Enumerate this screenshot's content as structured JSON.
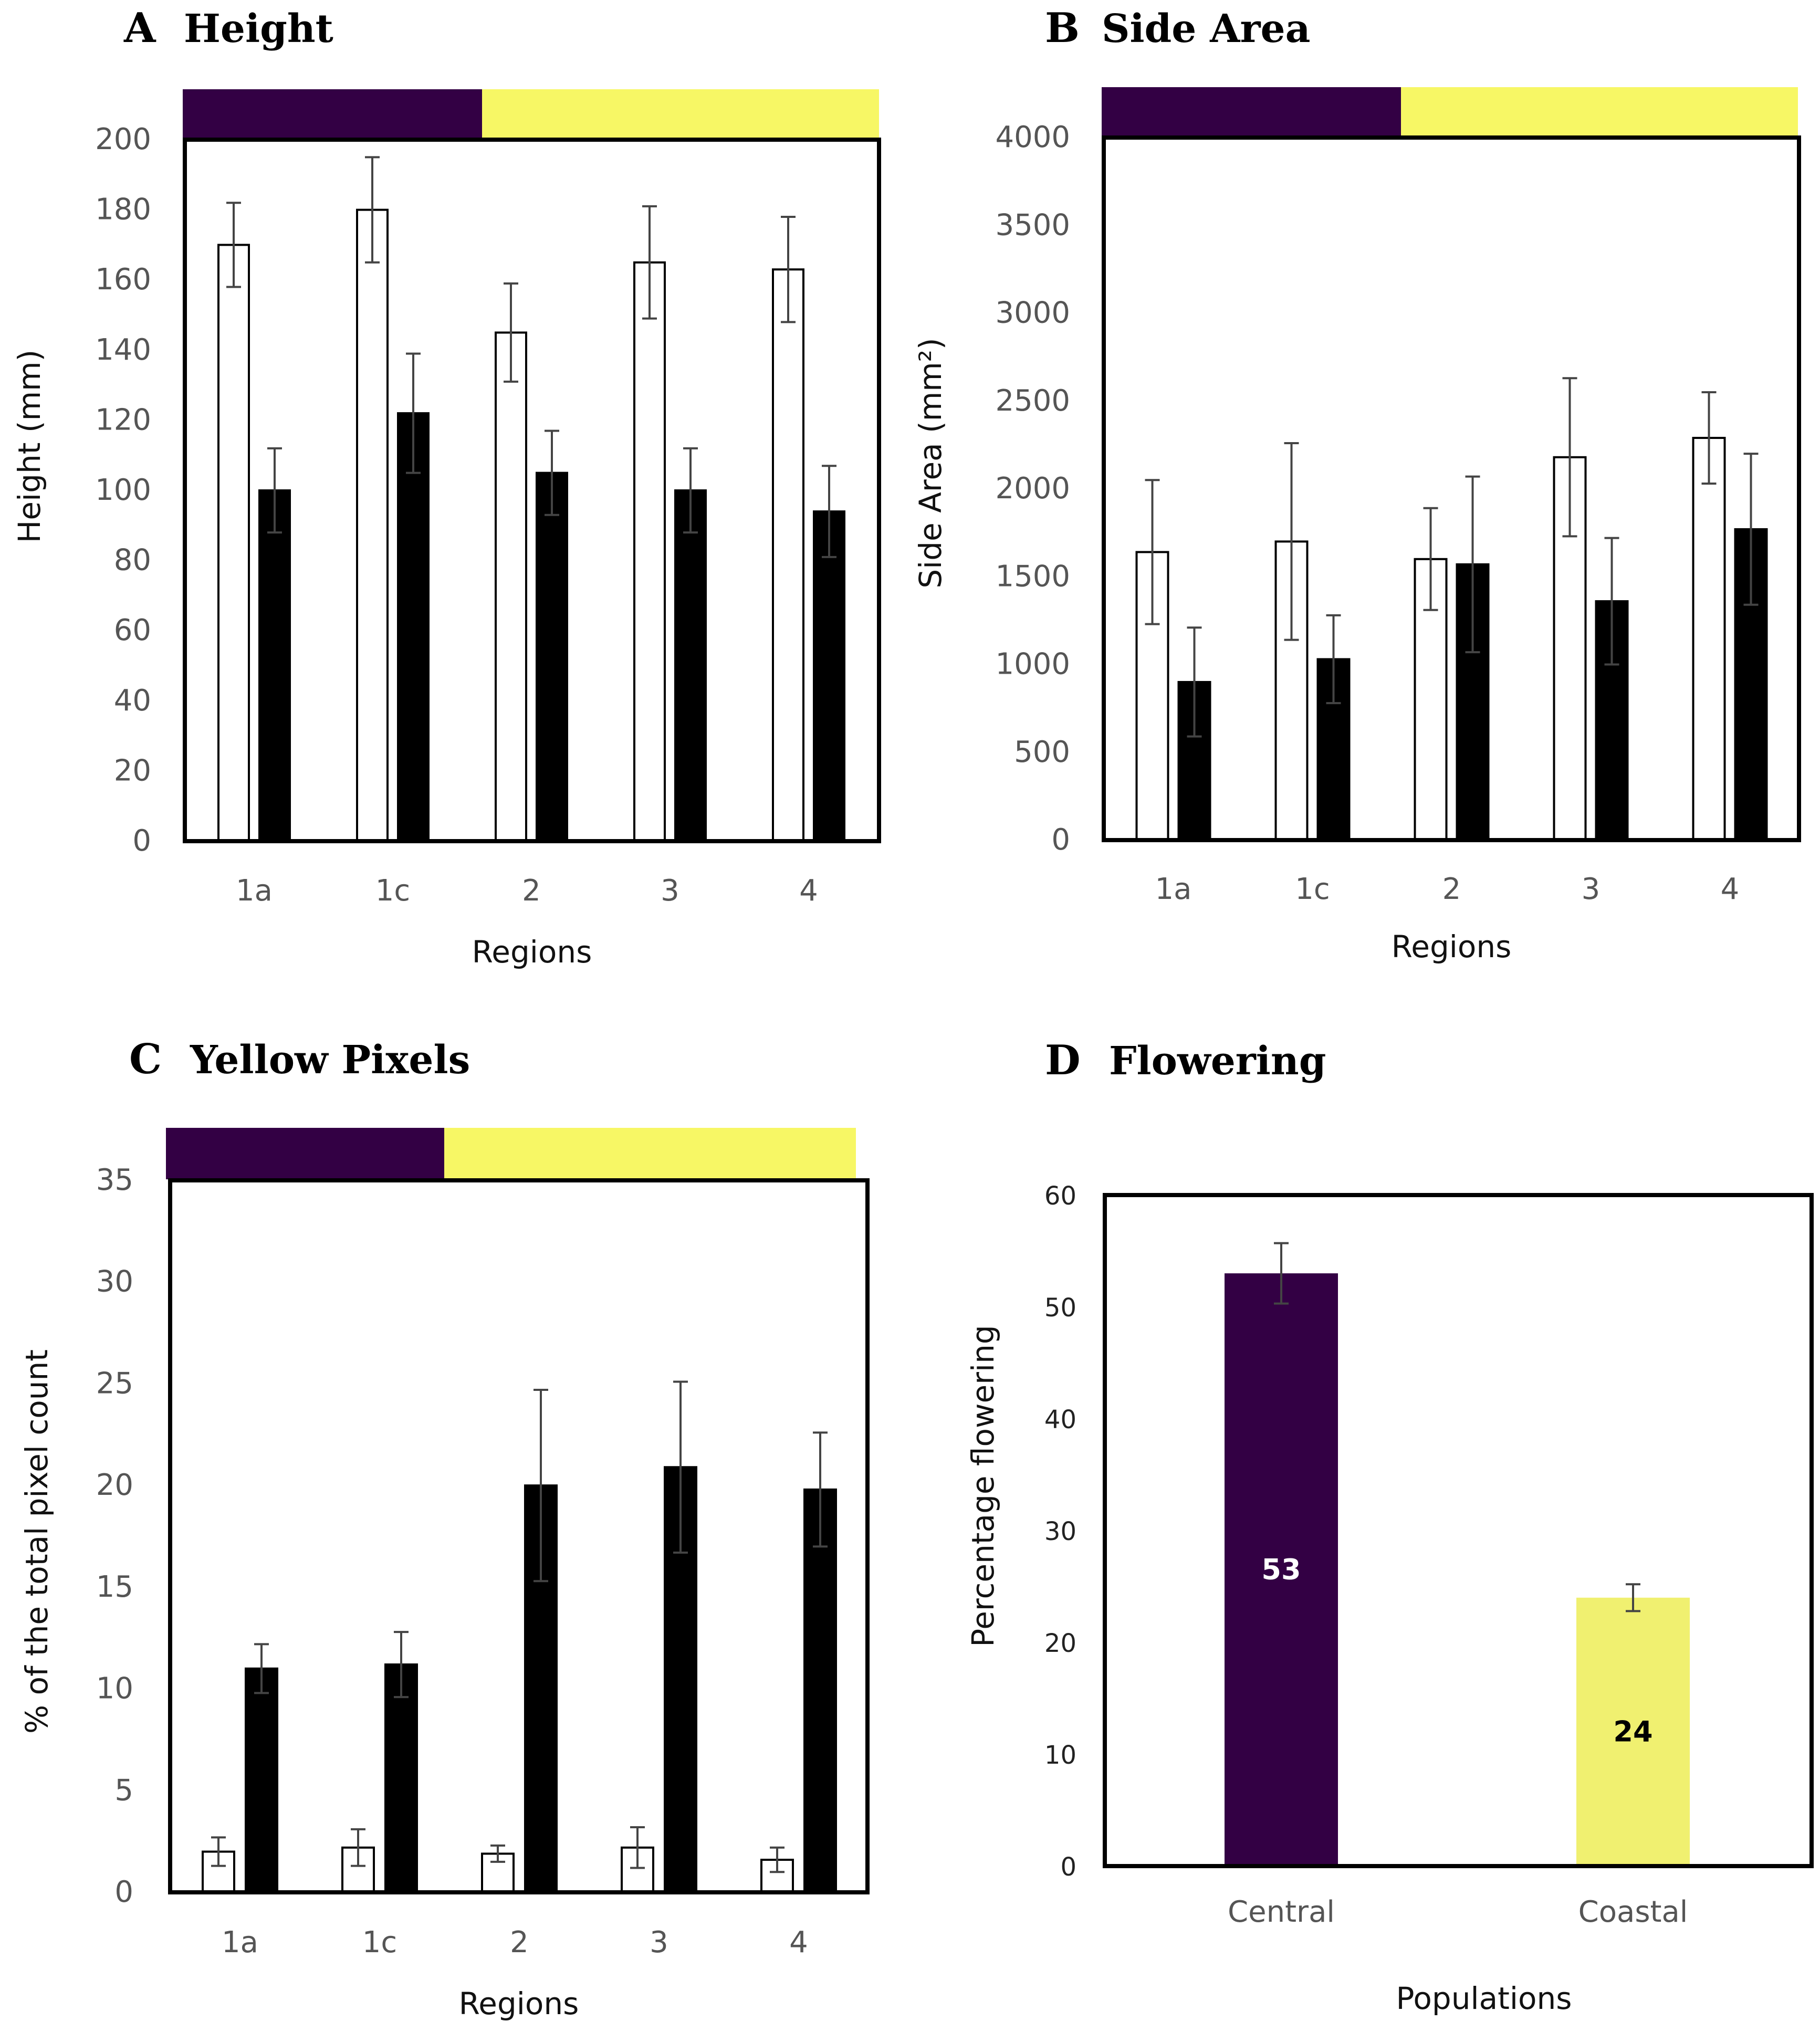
{
  "colors": {
    "central": "#330044",
    "coastal": "#f7f765",
    "coastal_bar": "#f0f070"
  },
  "chart_data": [
    {
      "id": "A",
      "type": "bar",
      "letter": "A",
      "title": "Height",
      "xlabel": "Regions",
      "ylabel": "Height (mm)",
      "ylim": [
        0,
        200
      ],
      "yticks": [
        0,
        20,
        40,
        60,
        80,
        100,
        120,
        140,
        160,
        180,
        200
      ],
      "categories": [
        "1a",
        "1c",
        "2",
        "3",
        "4"
      ],
      "series": [
        {
          "fill": "white",
          "values": [
            170,
            180,
            145,
            165,
            163
          ],
          "errors": [
            12,
            15,
            14,
            16,
            15
          ]
        },
        {
          "fill": "black",
          "values": [
            100,
            122,
            105,
            100,
            94
          ],
          "errors": [
            12,
            17,
            12,
            12,
            13
          ]
        }
      ]
    },
    {
      "id": "B",
      "type": "bar",
      "letter": "B",
      "title": "Side Area",
      "xlabel": "Regions",
      "ylabel": "Side Area (mm²)",
      "ylim": [
        0,
        4000
      ],
      "yticks": [
        0,
        500,
        1000,
        1500,
        2000,
        2500,
        3000,
        3500,
        4000
      ],
      "categories": [
        "1a",
        "1c",
        "2",
        "3",
        "4"
      ],
      "series": [
        {
          "fill": "white",
          "values": [
            1640,
            1700,
            1600,
            2180,
            2290
          ],
          "errors": [
            410,
            560,
            290,
            450,
            260
          ]
        },
        {
          "fill": "black",
          "values": [
            900,
            1030,
            1570,
            1360,
            1770
          ],
          "errors": [
            310,
            250,
            500,
            360,
            430
          ]
        }
      ]
    },
    {
      "id": "C",
      "type": "bar",
      "letter": "C",
      "title": "Yellow Pixels",
      "xlabel": "Regions",
      "ylabel": "% of the total pixel count",
      "ylim": [
        0,
        35
      ],
      "yticks": [
        0,
        5,
        10,
        15,
        20,
        25,
        30,
        35
      ],
      "categories": [
        "1a",
        "1c",
        "2",
        "3",
        "4"
      ],
      "series": [
        {
          "fill": "white",
          "values": [
            2.0,
            2.2,
            1.9,
            2.2,
            1.6
          ],
          "errors": [
            0.7,
            0.9,
            0.4,
            1.0,
            0.6
          ]
        },
        {
          "fill": "black",
          "values": [
            11.0,
            11.2,
            20.0,
            20.9,
            19.8
          ],
          "errors": [
            1.2,
            1.6,
            4.7,
            4.2,
            2.8
          ]
        }
      ]
    },
    {
      "id": "D",
      "type": "bar",
      "letter": "D",
      "title": "Flowering",
      "xlabel": "Populations",
      "ylabel": "Percentage flowering",
      "ylim": [
        0,
        60
      ],
      "yticks": [
        0,
        10,
        20,
        30,
        40,
        50,
        60
      ],
      "categories": [
        "Central",
        "Coastal"
      ],
      "values": [
        53,
        24
      ],
      "errors": [
        2.7,
        1.2
      ],
      "data_labels": [
        "53",
        "24"
      ]
    }
  ]
}
